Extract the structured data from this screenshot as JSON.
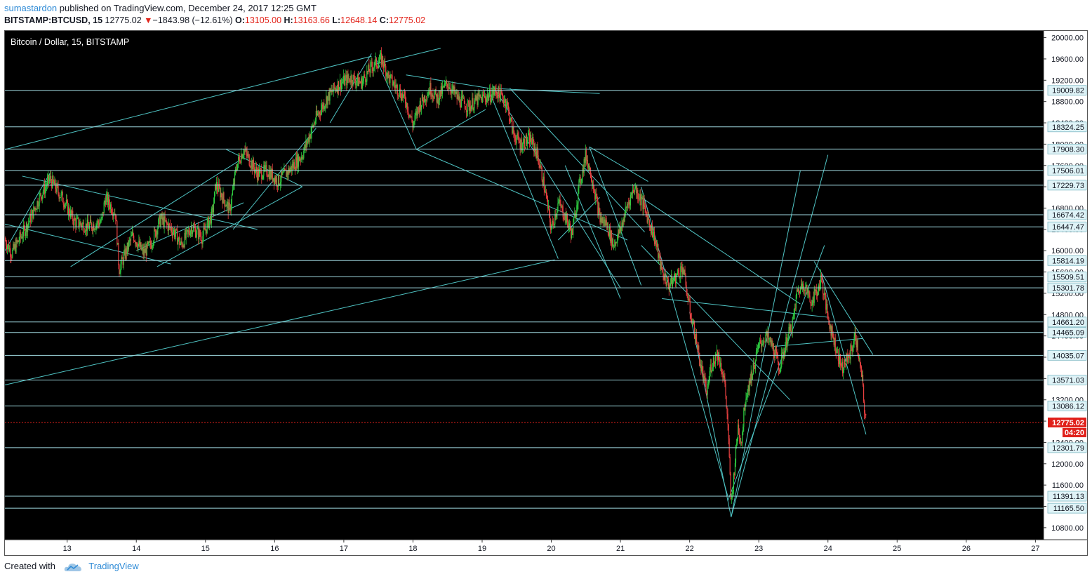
{
  "header": {
    "author": "sumastardon",
    "published_text": "published on TradingView.com, December 24, 2017 12:25 GMT",
    "symbol": "BITSTAMP:BTCUSD, 15",
    "last": "12775.02",
    "change": "−1843.98 (−12.61%)",
    "open_label": "O:",
    "open": "13105.00",
    "high_label": "H:",
    "high": "13163.66",
    "low_label": "L:",
    "low": "12648.14",
    "close_label": "C:",
    "close": "12775.02"
  },
  "footer": {
    "created_with": "Created with",
    "brand": "TradingView"
  },
  "colors": {
    "background": "#000000",
    "up": "#2ecc40",
    "down": "#e84040",
    "trendline": "#4fc4c4",
    "level_line": "#a0d8df",
    "price_line": "#e0201a",
    "axis_label_bg": "#dff3f7"
  },
  "chart_data": {
    "type": "candlestick",
    "title": "Bitcoin / Dollar, 15, BITSTAMP",
    "y_ticks": [
      10800,
      11200,
      11600,
      12000,
      12400,
      12800,
      13200,
      13600,
      14000,
      14400,
      14800,
      15200,
      15600,
      16000,
      16400,
      16800,
      17200,
      17600,
      18000,
      18400,
      18800,
      19200,
      19600,
      20000
    ],
    "x_ticks": [
      {
        "x": 13,
        "label": "13"
      },
      {
        "x": 14,
        "label": "14"
      },
      {
        "x": 15,
        "label": "15"
      },
      {
        "x": 16,
        "label": "16"
      },
      {
        "x": 17,
        "label": "17"
      },
      {
        "x": 18,
        "label": "18"
      },
      {
        "x": 19,
        "label": "19"
      },
      {
        "x": 20,
        "label": "20"
      },
      {
        "x": 21,
        "label": "21"
      },
      {
        "x": 22,
        "label": "22"
      },
      {
        "x": 23,
        "label": "23"
      },
      {
        "x": 24,
        "label": "24"
      },
      {
        "x": 25,
        "label": "25"
      },
      {
        "x": 26,
        "label": "26"
      },
      {
        "x": 27,
        "label": "27"
      }
    ],
    "ylim": [
      10650,
      20100
    ],
    "xlim": [
      12.1,
      27.1
    ],
    "last_price": {
      "price": 12775.02,
      "label": "12775.02",
      "countdown": "04:20"
    },
    "levels": [
      {
        "price": 19009.82,
        "label": "19009.82"
      },
      {
        "price": 18324.25,
        "label": "18324.25"
      },
      {
        "price": 17908.3,
        "label": "17908.30"
      },
      {
        "price": 17506.01,
        "label": "17506.01"
      },
      {
        "price": 17229.73,
        "label": "17229.73"
      },
      {
        "price": 16674.42,
        "label": "16674.42"
      },
      {
        "price": 16447.47,
        "label": "16447.47"
      },
      {
        "price": 15814.19,
        "label": "15814.19"
      },
      {
        "price": 15509.51,
        "label": "15509.51"
      },
      {
        "price": 15301.78,
        "label": "15301.78"
      },
      {
        "price": 14661.2,
        "label": "14661.20"
      },
      {
        "price": 14465.09,
        "label": "14465.09"
      },
      {
        "price": 14035.07,
        "label": "14035.07"
      },
      {
        "price": 13571.03,
        "label": "13571.03"
      },
      {
        "price": 13086.12,
        "label": "13086.12"
      },
      {
        "price": 12301.79,
        "label": "12301.79"
      },
      {
        "price": 11391.13,
        "label": "11391.13"
      },
      {
        "price": 11165.5,
        "label": "11165.50"
      }
    ],
    "path": [
      [
        12.1,
        16200
      ],
      [
        12.2,
        15950
      ],
      [
        12.45,
        16550
      ],
      [
        12.6,
        17000
      ],
      [
        12.75,
        17350
      ],
      [
        12.95,
        16950
      ],
      [
        13.1,
        16550
      ],
      [
        13.3,
        16450
      ],
      [
        13.5,
        16550
      ],
      [
        13.55,
        17000
      ],
      [
        13.7,
        16700
      ],
      [
        13.75,
        15650
      ],
      [
        13.95,
        16300
      ],
      [
        14.1,
        15950
      ],
      [
        14.2,
        16100
      ],
      [
        14.35,
        16600
      ],
      [
        14.55,
        16350
      ],
      [
        14.65,
        16100
      ],
      [
        14.8,
        16450
      ],
      [
        14.95,
        16250
      ],
      [
        15.1,
        16700
      ],
      [
        15.15,
        17250
      ],
      [
        15.35,
        16750
      ],
      [
        15.45,
        17600
      ],
      [
        15.55,
        17900
      ],
      [
        15.75,
        17450
      ],
      [
        15.9,
        17500
      ],
      [
        16.05,
        17300
      ],
      [
        16.2,
        17500
      ],
      [
        16.4,
        17800
      ],
      [
        16.6,
        18500
      ],
      [
        16.75,
        18850
      ],
      [
        16.9,
        19100
      ],
      [
        17.1,
        19250
      ],
      [
        17.25,
        19150
      ],
      [
        17.4,
        19450
      ],
      [
        17.55,
        19600
      ],
      [
        17.65,
        19250
      ],
      [
        17.8,
        19000
      ],
      [
        17.9,
        18800
      ],
      [
        18.0,
        18350
      ],
      [
        18.1,
        18750
      ],
      [
        18.25,
        19050
      ],
      [
        18.35,
        18850
      ],
      [
        18.5,
        19150
      ],
      [
        18.65,
        18850
      ],
      [
        18.8,
        18700
      ],
      [
        18.95,
        18850
      ],
      [
        19.1,
        18900
      ],
      [
        19.2,
        19000
      ],
      [
        19.35,
        18800
      ],
      [
        19.45,
        18200
      ],
      [
        19.55,
        18000
      ],
      [
        19.7,
        18100
      ],
      [
        19.8,
        17800
      ],
      [
        19.9,
        17200
      ],
      [
        20.0,
        16400
      ],
      [
        20.1,
        16900
      ],
      [
        20.2,
        16650
      ],
      [
        20.3,
        16300
      ],
      [
        20.4,
        17200
      ],
      [
        20.5,
        17800
      ],
      [
        20.6,
        17300
      ],
      [
        20.7,
        16600
      ],
      [
        20.8,
        16500
      ],
      [
        20.9,
        16100
      ],
      [
        21.0,
        16400
      ],
      [
        21.1,
        16850
      ],
      [
        21.2,
        17200
      ],
      [
        21.3,
        16950
      ],
      [
        21.4,
        16600
      ],
      [
        21.5,
        16200
      ],
      [
        21.6,
        15600
      ],
      [
        21.7,
        15350
      ],
      [
        21.8,
        15500
      ],
      [
        21.9,
        15700
      ],
      [
        21.95,
        15300
      ],
      [
        22.0,
        14900
      ],
      [
        22.1,
        14300
      ],
      [
        22.15,
        13900
      ],
      [
        22.25,
        13300
      ],
      [
        22.3,
        13800
      ],
      [
        22.4,
        14100
      ],
      [
        22.5,
        13600
      ],
      [
        22.55,
        12800
      ],
      [
        22.6,
        11200
      ],
      [
        22.7,
        12700
      ],
      [
        22.75,
        12400
      ],
      [
        22.8,
        13200
      ],
      [
        22.9,
        13700
      ],
      [
        23.0,
        14200
      ],
      [
        23.1,
        14400
      ],
      [
        23.2,
        14200
      ],
      [
        23.3,
        13800
      ],
      [
        23.4,
        14300
      ],
      [
        23.5,
        14700
      ],
      [
        23.55,
        15200
      ],
      [
        23.65,
        15400
      ],
      [
        23.75,
        15050
      ],
      [
        23.85,
        15250
      ],
      [
        23.9,
        15500
      ],
      [
        24.0,
        14750
      ],
      [
        24.1,
        14250
      ],
      [
        24.2,
        13800
      ],
      [
        24.3,
        14000
      ],
      [
        24.4,
        14400
      ],
      [
        24.5,
        13500
      ],
      [
        24.52,
        13105
      ],
      [
        24.55,
        12775.02
      ]
    ],
    "trendlines": [
      [
        12.1,
        17900,
        17.4,
        19650
      ],
      [
        12.1,
        13480,
        20.05,
        15830
      ],
      [
        12.1,
        16500,
        14.5,
        15750
      ],
      [
        12.35,
        17400,
        15.75,
        16400
      ],
      [
        12.1,
        16000,
        12.75,
        17450
      ],
      [
        13.05,
        15700,
        15.5,
        17700
      ],
      [
        14.3,
        15700,
        16.4,
        17200
      ],
      [
        15.3,
        17900,
        16.4,
        17200
      ],
      [
        15.4,
        16400,
        16.6,
        18300
      ],
      [
        14.0,
        16000,
        15.55,
        16900
      ],
      [
        16.8,
        18400,
        17.4,
        19700
      ],
      [
        17.45,
        19650,
        18.05,
        17900
      ],
      [
        17.45,
        19500,
        18.4,
        19800
      ],
      [
        17.9,
        19300,
        19.1,
        19050
      ],
      [
        19.1,
        19050,
        20.7,
        18950
      ],
      [
        18.05,
        17900,
        19.05,
        18650
      ],
      [
        19.1,
        19000,
        20.1,
        15850
      ],
      [
        19.15,
        19100,
        21.0,
        15300
      ],
      [
        19.4,
        19050,
        21.35,
        16350
      ],
      [
        20.2,
        17600,
        21.0,
        15100
      ],
      [
        20.55,
        17950,
        21.3,
        15350
      ],
      [
        20.55,
        17950,
        21.4,
        17300
      ],
      [
        20.1,
        16200,
        20.7,
        17000
      ],
      [
        21.3,
        17200,
        22.55,
        11400
      ],
      [
        21.3,
        17000,
        23.6,
        15000
      ],
      [
        21.6,
        15100,
        24.0,
        14750
      ],
      [
        22.0,
        14850,
        22.6,
        11000
      ],
      [
        22.6,
        11000,
        23.6,
        17500
      ],
      [
        22.6,
        11000,
        24.0,
        17800
      ],
      [
        22.55,
        11300,
        23.95,
        16100
      ],
      [
        23.8,
        15800,
        24.65,
        14050
      ],
      [
        23.9,
        15600,
        24.55,
        12550
      ],
      [
        23.2,
        14200,
        24.5,
        14350
      ],
      [
        18.05,
        17900,
        21.1,
        16200
      ],
      [
        21.3,
        16100,
        23.45,
        13200
      ]
    ]
  }
}
